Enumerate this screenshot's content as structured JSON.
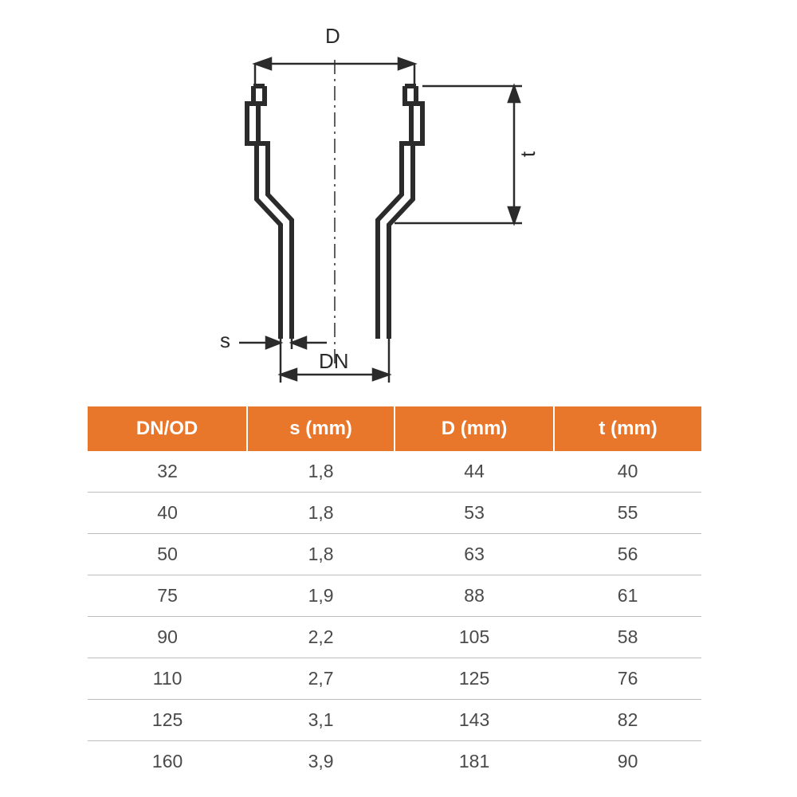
{
  "diagram": {
    "labels": {
      "D": "D",
      "t": "t",
      "s": "s",
      "DN": "DN"
    },
    "colors": {
      "line": "#2b2b2b",
      "label": "#2b2b2b",
      "centerline": "#2b2b2b"
    }
  },
  "table": {
    "header_bg": "#e8762b",
    "header_fg": "#ffffff",
    "row_border": "#bdbdbd",
    "cell_fg": "#4a4a4a",
    "columns": [
      "DN/OD",
      "s (mm)",
      "D (mm)",
      "t (mm)"
    ],
    "col_widths": [
      "26%",
      "24%",
      "26%",
      "24%"
    ],
    "rows": [
      [
        "32",
        "1,8",
        "44",
        "40"
      ],
      [
        "40",
        "1,8",
        "53",
        "55"
      ],
      [
        "50",
        "1,8",
        "63",
        "56"
      ],
      [
        "75",
        "1,9",
        "88",
        "61"
      ],
      [
        "90",
        "2,2",
        "105",
        "58"
      ],
      [
        "110",
        "2,7",
        "125",
        "76"
      ],
      [
        "125",
        "3,1",
        "143",
        "82"
      ],
      [
        "160",
        "3,9",
        "181",
        "90"
      ]
    ]
  }
}
